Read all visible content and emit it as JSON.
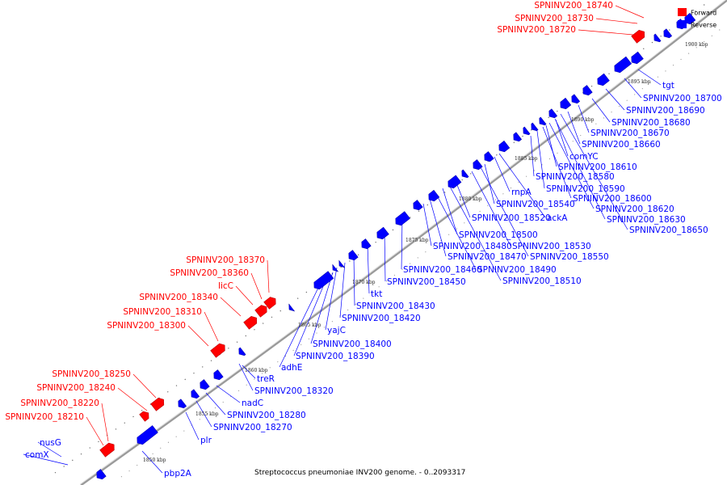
{
  "legend": {
    "forward": {
      "label": "Forward",
      "color": "#ff0000"
    },
    "reverse": {
      "label": "Reverse",
      "color": "#0000ff"
    }
  },
  "caption": "Streptococcus pneumoniae INV200 genome. - 0..2093317",
  "scale_ticks": [
    "1850 kbp",
    "1855 kbp",
    "1860 kbp",
    "1865 kbp",
    "1870 kbp",
    "1875 kbp",
    "1880 kbp",
    "1885 kbp",
    "1890 kbp",
    "1895 kbp",
    "1900 kbp"
  ],
  "forward_labels": [
    "SPNINV200_18740",
    "SPNINV200_18730",
    "SPNINV200_18720",
    "SPNINV200_18370",
    "SPNINV200_18360",
    "licC",
    "SPNINV200_18340",
    "SPNINV200_18310",
    "SPNINV200_18300",
    "SPNINV200_18250",
    "SPNINV200_18240",
    "SPNINV200_18220",
    "SPNINV200_18210"
  ],
  "reverse_labels": [
    "tgt",
    "SPNINV200_18700",
    "SPNINV200_18690",
    "SPNINV200_18680",
    "SPNINV200_18670",
    "SPNINV200_18660",
    "comYC",
    "SPNINV200_18610",
    "SPNINV200_18580",
    "SPNINV200_18590",
    "SPNINV200_18600",
    "rnpA",
    "SPNINV200_18540",
    "SPNINV200_18620",
    "SPNINV200_18630",
    "SPNINV200_18650",
    "SPNINV200_18520",
    "ackA",
    "SPNINV200_18500",
    "SPNINV200_18530",
    "SPNINV200_18480",
    "SPNINV200_18550",
    "SPNINV200_18470",
    "SPNINV200_18460",
    "SPNINV200_18490",
    "SPNINV200_18450",
    "SPNINV200_18510",
    "tkt",
    "SPNINV200_18430",
    "SPNINV200_18420",
    "yajC",
    "SPNINV200_18400",
    "SPNINV200_18390",
    "adhE",
    "treR",
    "SPNINV200_18320",
    "nadC",
    "SPNINV200_18280",
    "SPNINV200_18270",
    "plr",
    "nusG",
    "comX",
    "pbp2A"
  ]
}
